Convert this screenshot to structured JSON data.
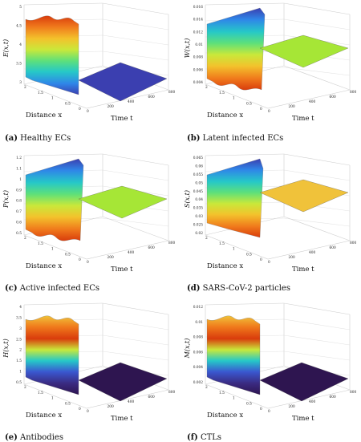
{
  "figure": {
    "panels": [
      {
        "tag": "(a)",
        "caption": "Healthy ECs",
        "zlabel": "E(x,t)",
        "ticks": [
          "5",
          "4.5",
          "4",
          "3.5",
          "3"
        ],
        "plateau": "#3b3fb0",
        "surface": "rainbow_down",
        "shape": "high_then_low"
      },
      {
        "tag": "(b)",
        "caption": "Latent infected ECs",
        "zlabel": "W(x,t)",
        "ticks": [
          "0.016",
          "0.014",
          "0.012",
          "0.01",
          "0.008",
          "0.006",
          "0.004"
        ],
        "plateau": "#a6e636",
        "surface": "rainbow_up",
        "shape": "rise_then_mid"
      },
      {
        "tag": "(c)",
        "caption": "Active infected ECs",
        "zlabel": "P(x,t)",
        "ticks": [
          "1.2",
          "1.1",
          "1",
          "0.9",
          "0.8",
          "0.7",
          "0.6",
          "0.5"
        ],
        "plateau": "#a6e636",
        "surface": "rainbow_up",
        "shape": "rise_then_mid"
      },
      {
        "tag": "(d)",
        "caption": "SARS-CoV-2 particles",
        "zlabel": "S(x,t)",
        "ticks": [
          "0.065",
          "0.06",
          "0.055",
          "0.05",
          "0.045",
          "0.04",
          "0.035",
          "0.03",
          "0.025",
          "0.02"
        ],
        "plateau": "#f0c23a",
        "surface": "rainbow_up",
        "shape": "rise_then_high"
      },
      {
        "tag": "(e)",
        "caption": "Antibodies",
        "zlabel": "H(x,t)",
        "ticks": [
          "4",
          "3.5",
          "3",
          "2.5",
          "2",
          "1.5",
          "1",
          "0.5"
        ],
        "plateau": "#2e1550",
        "surface": "rainbow_down",
        "shape": "high_then_low"
      },
      {
        "tag": "(f)",
        "caption": "CTLs",
        "zlabel": "M(x,t)",
        "ticks": [
          "0.012",
          "0.01",
          "0.008",
          "0.006",
          "0.004",
          "0.002"
        ],
        "plateau": "#2e1550",
        "surface": "rainbow_down",
        "shape": "high_then_low"
      }
    ],
    "axis": {
      "distance_label": "Distance x",
      "time_label": "Time t",
      "distance_ticks": [
        "2",
        "1.5",
        "1",
        "0.5",
        "0"
      ],
      "time_ticks": [
        "0",
        "200",
        "400",
        "600",
        "800"
      ]
    }
  }
}
